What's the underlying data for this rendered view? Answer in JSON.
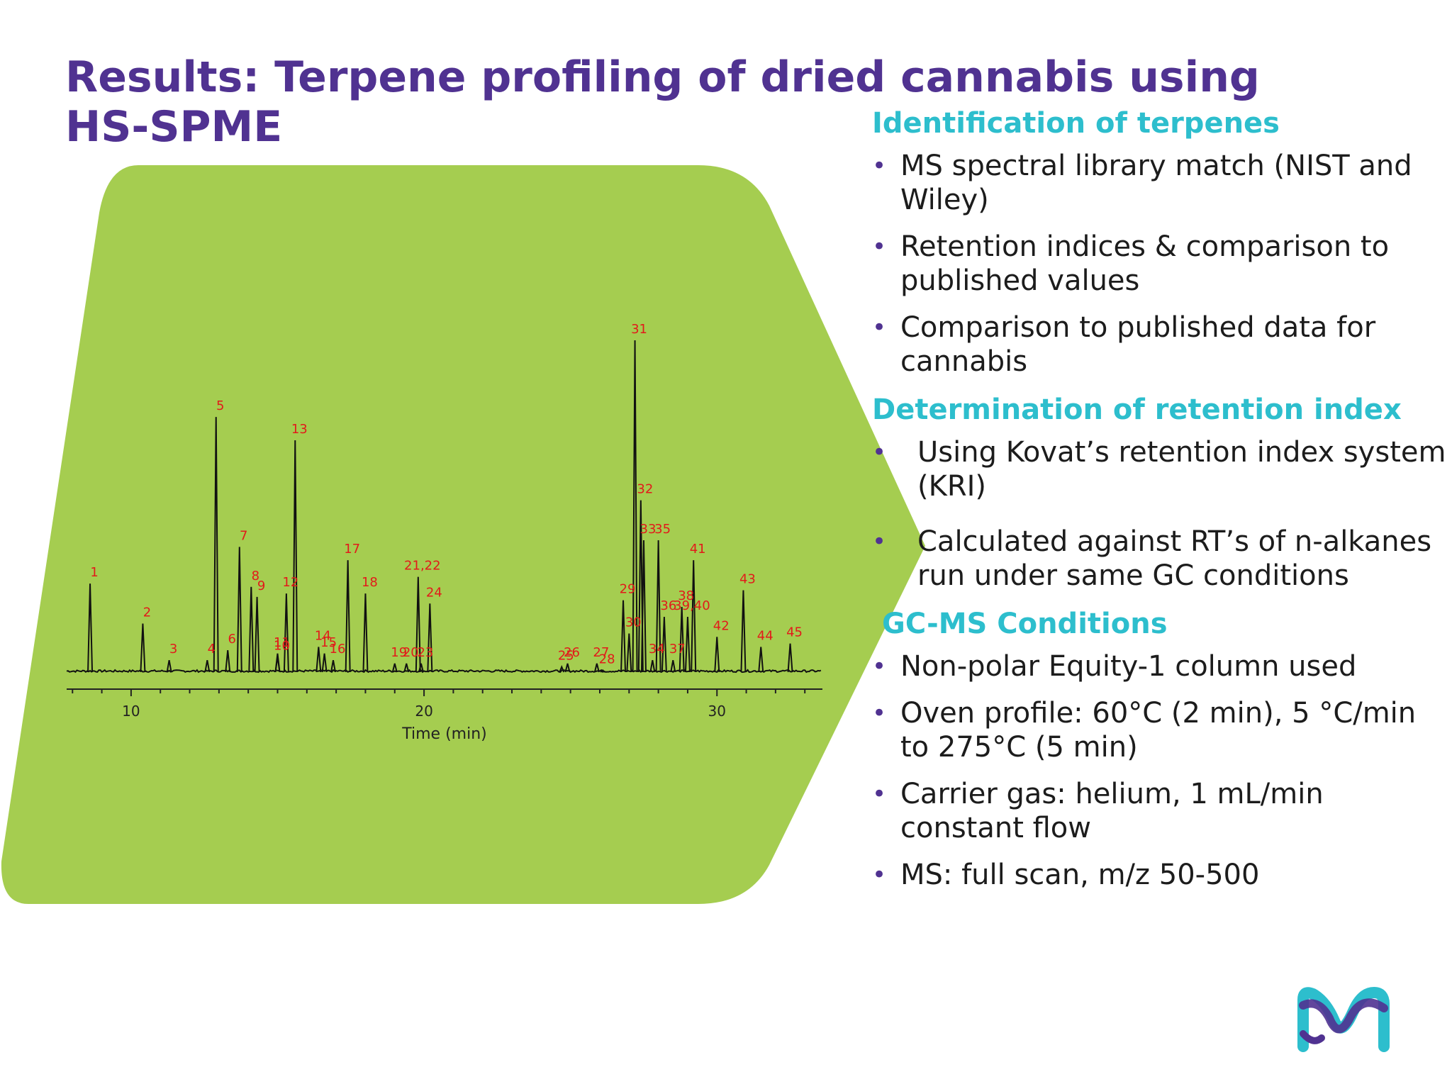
{
  "slide": {
    "title": "Results: Terpene profiling of dried cannabis using HS-SPME"
  },
  "colors": {
    "title": "#503291",
    "heading": "#2dbecd",
    "bullet": "#503291",
    "shape": "#a5cd50",
    "peak_label": "#e21a1a"
  },
  "sections": [
    {
      "heading": "Identification of terpenes",
      "bullets": [
        "MS spectral library match (NIST and Wiley)",
        "Retention indices & comparison to published values",
        "Comparison to published data for cannabis"
      ]
    },
    {
      "heading": "Determination of retention index",
      "bullets": [
        "Using Kovat’s retention index system (KRI)",
        "Calculated against RT’s of n-alkanes run under same GC conditions"
      ]
    },
    {
      "heading": "GC-MS Conditions",
      "bullets": [
        "Non-polar Equity-1 column used",
        "Oven profile: 60°C (2 min), 5 °C/min to 275°C (5 min)",
        "Carrier gas:  helium, 1 mL/min constant flow",
        "MS: full scan, m/z 50-500"
      ]
    }
  ],
  "logo": {
    "icon": "m-logo-icon",
    "color_a": "#503291",
    "color_b": "#2dbecd"
  },
  "chart_data": {
    "type": "line",
    "title": "",
    "xlabel": "Time (min)",
    "ylabel": "",
    "xlim": [
      7.8,
      33.6
    ],
    "ylim": [
      0,
      100
    ],
    "x_ticks": [
      10,
      20,
      30
    ],
    "x_minor_step": 1,
    "y_axis_shown": false,
    "grid": false,
    "peaks": [
      {
        "label": "1",
        "x": 8.6,
        "y": 27
      },
      {
        "label": "2",
        "x": 10.4,
        "y": 15
      },
      {
        "label": "3",
        "x": 11.3,
        "y": 4
      },
      {
        "label": "4",
        "x": 12.6,
        "y": 4
      },
      {
        "label": "5",
        "x": 12.9,
        "y": 77
      },
      {
        "label": "6",
        "x": 13.3,
        "y": 7
      },
      {
        "label": "7",
        "x": 13.7,
        "y": 38
      },
      {
        "label": "8",
        "x": 14.1,
        "y": 26
      },
      {
        "label": "9",
        "x": 14.3,
        "y": 23
      },
      {
        "label": "10",
        "x": 15.0,
        "y": 5
      },
      {
        "label": "11",
        "x": 15.0,
        "y": 6
      },
      {
        "label": "12",
        "x": 15.3,
        "y": 24
      },
      {
        "label": "13",
        "x": 15.6,
        "y": 70
      },
      {
        "label": "14",
        "x": 16.4,
        "y": 8
      },
      {
        "label": "15",
        "x": 16.6,
        "y": 6
      },
      {
        "label": "16",
        "x": 16.9,
        "y": 4
      },
      {
        "label": "17",
        "x": 17.4,
        "y": 34
      },
      {
        "label": "18",
        "x": 18.0,
        "y": 24
      },
      {
        "label": "19",
        "x": 19.0,
        "y": 3
      },
      {
        "label": "20",
        "x": 19.4,
        "y": 3
      },
      {
        "label": "21,22",
        "x": 19.8,
        "y": 29
      },
      {
        "label": "23",
        "x": 19.9,
        "y": 3
      },
      {
        "label": "24",
        "x": 20.2,
        "y": 21
      },
      {
        "label": "25",
        "x": 24.7,
        "y": 2
      },
      {
        "label": "26",
        "x": 24.9,
        "y": 3
      },
      {
        "label": "27",
        "x": 25.9,
        "y": 3
      },
      {
        "label": "28",
        "x": 26.1,
        "y": 1
      },
      {
        "label": "29",
        "x": 26.8,
        "y": 22
      },
      {
        "label": "30",
        "x": 27.0,
        "y": 12
      },
      {
        "label": "31",
        "x": 27.2,
        "y": 100
      },
      {
        "label": "32",
        "x": 27.4,
        "y": 52
      },
      {
        "label": "33",
        "x": 27.5,
        "y": 40
      },
      {
        "label": "34",
        "x": 27.8,
        "y": 4
      },
      {
        "label": "35",
        "x": 28.0,
        "y": 40
      },
      {
        "label": "36",
        "x": 28.2,
        "y": 17
      },
      {
        "label": "37",
        "x": 28.5,
        "y": 4
      },
      {
        "label": "38",
        "x": 28.8,
        "y": 20
      },
      {
        "label": "39,40",
        "x": 29.0,
        "y": 17
      },
      {
        "label": "41",
        "x": 29.2,
        "y": 34
      },
      {
        "label": "42",
        "x": 30.0,
        "y": 11
      },
      {
        "label": "43",
        "x": 30.9,
        "y": 25
      },
      {
        "label": "44",
        "x": 31.5,
        "y": 8
      },
      {
        "label": "45",
        "x": 32.5,
        "y": 9
      }
    ]
  }
}
